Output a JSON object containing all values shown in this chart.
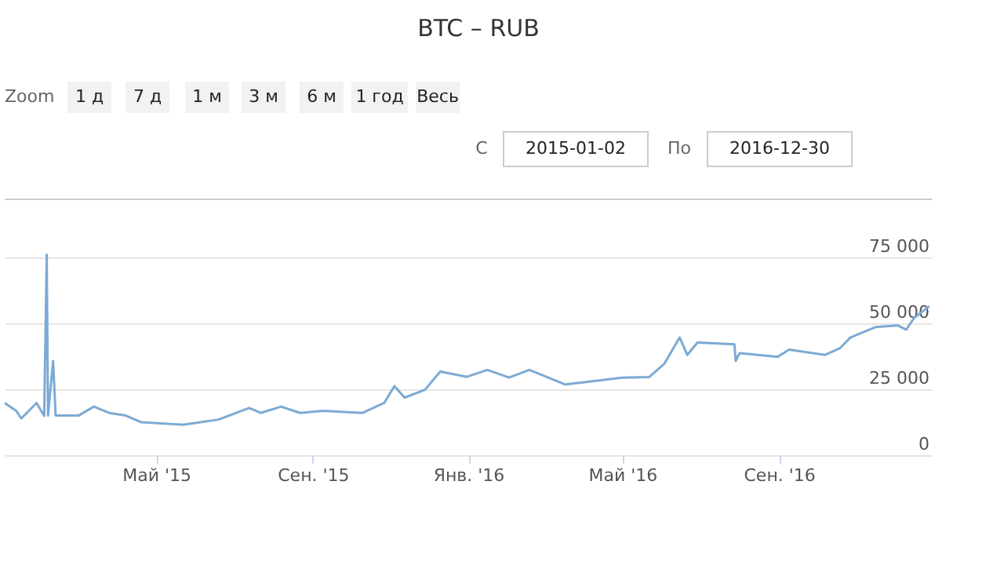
{
  "chart_data": {
    "type": "line",
    "title": "BTC – RUB",
    "annotations": [
      "Zoom",
      "1 д",
      "7 д",
      "1 м",
      "3 м",
      "6 м",
      "1 год",
      "Весь",
      "С",
      "2015-01-02",
      "По",
      "2016-12-30"
    ],
    "x": [
      "2015-01-02",
      "2015-01-11",
      "2015-01-15",
      "2015-01-27",
      "2015-02-02",
      "2015-02-04",
      "2015-02-05",
      "2015-02-09",
      "2015-02-11",
      "2015-03-01",
      "2015-03-13",
      "2015-03-25",
      "2015-04-07",
      "2015-04-19",
      "2015-05-22",
      "2015-06-19",
      "2015-07-13",
      "2015-07-22",
      "2015-08-07",
      "2015-08-22",
      "2015-09-09",
      "2015-10-10",
      "2015-10-27",
      "2015-11-04",
      "2015-11-12",
      "2015-11-28",
      "2015-12-10",
      "2015-12-31",
      "2016-01-16",
      "2016-02-02",
      "2016-02-18",
      "2016-03-17",
      "2016-05-01",
      "2016-05-22",
      "2016-06-03",
      "2016-06-15",
      "2016-06-21",
      "2016-06-29",
      "2016-07-28",
      "2016-07-29",
      "2016-08-01",
      "2016-08-31",
      "2016-09-09",
      "2016-10-07",
      "2016-10-19",
      "2016-10-27",
      "2016-11-16",
      "2016-12-03",
      "2016-12-10",
      "2016-12-16",
      "2016-12-28"
    ],
    "series": [
      {
        "color": "#7caad4",
        "values": [
          19800,
          16800,
          13900,
          19800,
          14900,
          76000,
          15000,
          35700,
          15000,
          15000,
          18400,
          16000,
          15000,
          12500,
          11500,
          13500,
          17900,
          16000,
          18400,
          16000,
          16800,
          16000,
          19800,
          26200,
          21800,
          24800,
          31700,
          29700,
          32300,
          29400,
          32300,
          26800,
          29400,
          29600,
          34700,
          44600,
          38000,
          42700,
          42000,
          35700,
          38700,
          37300,
          40000,
          38000,
          40600,
          44600,
          48600,
          49200,
          47600,
          52000,
          56500
        ]
      }
    ],
    "xlim": [
      "2015-01-02",
      "2016-12-30"
    ],
    "xticks": [
      {
        "value": "2015-05-01",
        "label": "Май '15"
      },
      {
        "value": "2015-09-01",
        "label": "Сен. '15"
      },
      {
        "value": "2016-01-01",
        "label": "Янв. '16"
      },
      {
        "value": "2016-05-01",
        "label": "Май '16"
      },
      {
        "value": "2016-09-01",
        "label": "Сен. '16"
      }
    ],
    "ylim": [
      0,
      97000
    ],
    "yticks": [
      0,
      25000,
      50000,
      75000
    ],
    "grid": "y",
    "marker": "none",
    "line_style": "solid"
  }
}
